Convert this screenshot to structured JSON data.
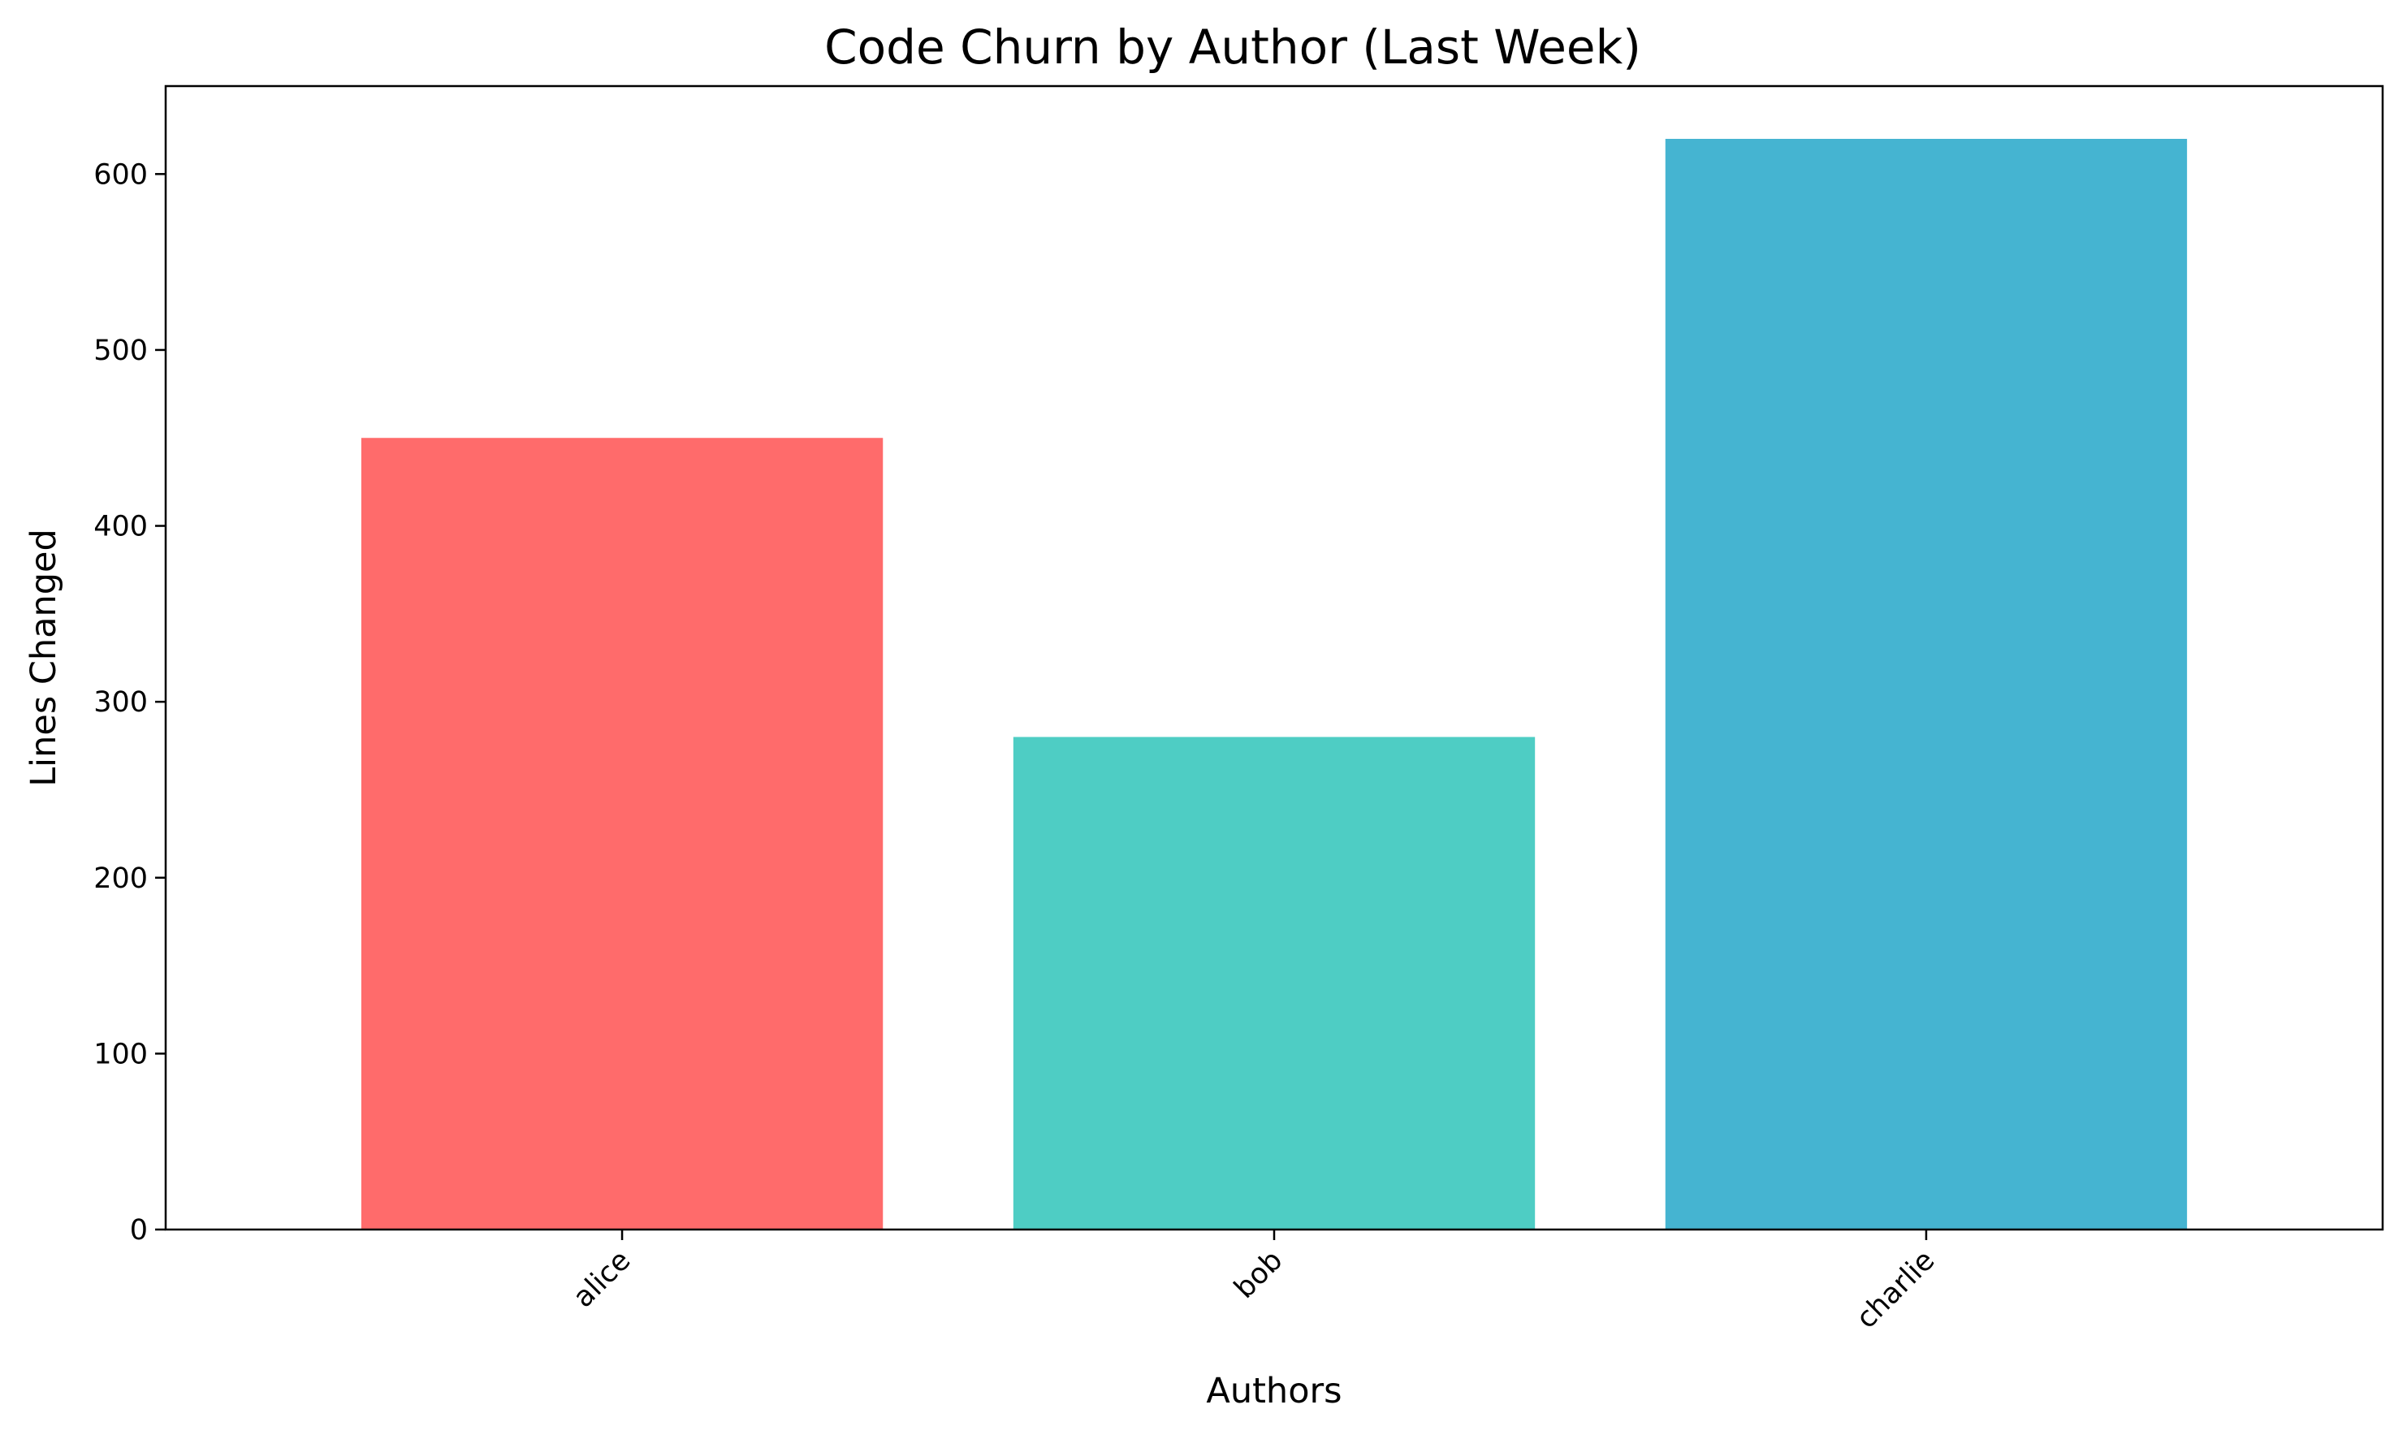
{
  "chart_data": {
    "type": "bar",
    "title": "Code Churn by Author (Last Week)",
    "xlabel": "Authors",
    "ylabel": "Lines Changed",
    "categories": [
      "alice",
      "bob",
      "charlie"
    ],
    "values": [
      450,
      280,
      620
    ],
    "colors": [
      "#ff6b6b",
      "#4ecdc4",
      "#45b4d1"
    ],
    "ylim": [
      0,
      650
    ],
    "yticks": [
      0,
      100,
      200,
      300,
      400,
      500,
      600
    ],
    "xtick_rotation": "45 degrees",
    "grid": false,
    "legend": "none"
  }
}
